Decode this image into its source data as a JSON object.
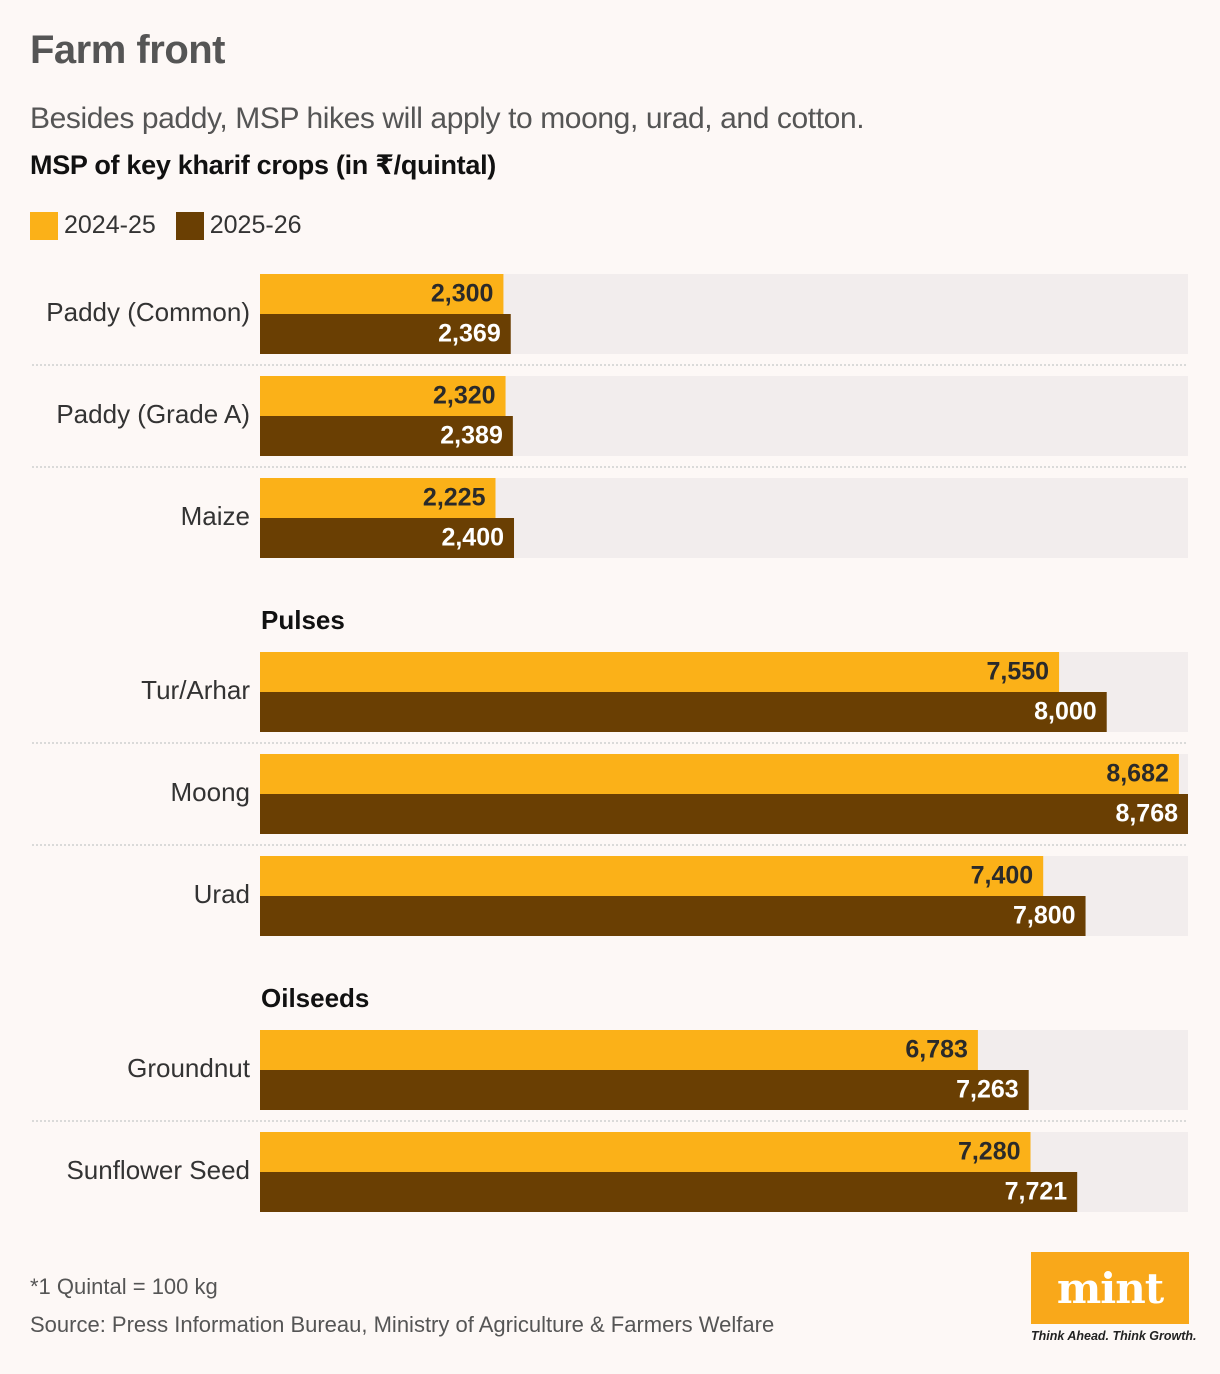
{
  "title": "Farm front",
  "subtitle": "Besides paddy, MSP hikes will apply to moong, urad, and cotton.",
  "footnote": "*1 Quintal = 100 kg",
  "source": "Source: Press Information Bureau, Ministry of Agriculture & Farmers Welfare",
  "logo": {
    "text": "mint",
    "tagline": "Think Ahead. Think Growth.",
    "color": "#f9a81a"
  },
  "colors": {
    "series_2024": "#fbb118",
    "series_2025": "#6a3f03",
    "track": "#f2eded",
    "divider": "#cfcfcf"
  },
  "chart_data": {
    "type": "bar",
    "orientation": "horizontal",
    "title": "MSP of key kharif crops (in ₹/quintal)",
    "legend": [
      "2024-25",
      "2025-26"
    ],
    "series": [
      {
        "name": "2024-25",
        "values": [
          2300,
          2320,
          2225,
          7550,
          8682,
          7400,
          6783,
          7280
        ]
      },
      {
        "name": "2025-26",
        "values": [
          2369,
          2389,
          2400,
          8000,
          8768,
          7800,
          7263,
          7721
        ]
      }
    ],
    "categories": [
      "Paddy (Common)",
      "Paddy (Grade A)",
      "Maize",
      "Tur/Arhar",
      "Moong",
      "Urad",
      "Groundnut",
      "Sunflower Seed"
    ],
    "value_labels_2024": [
      "2,300",
      "2,320",
      "2,225",
      "7,550",
      "8,682",
      "7,400",
      "6,783",
      "7,280"
    ],
    "value_labels_2025": [
      "2,369",
      "2,389",
      "2,400",
      "8,000",
      "8,768",
      "7,800",
      "7,263",
      "7,721"
    ],
    "groups": [
      {
        "name": "",
        "categories": [
          "Paddy (Common)",
          "Paddy (Grade A)",
          "Maize"
        ]
      },
      {
        "name": "Pulses",
        "categories": [
          "Tur/Arhar",
          "Moong",
          "Urad"
        ]
      },
      {
        "name": "Oilseeds",
        "categories": [
          "Groundnut",
          "Sunflower Seed"
        ]
      }
    ],
    "xlim": [
      0,
      8768
    ],
    "legend_position": "top-left",
    "grid": false
  }
}
